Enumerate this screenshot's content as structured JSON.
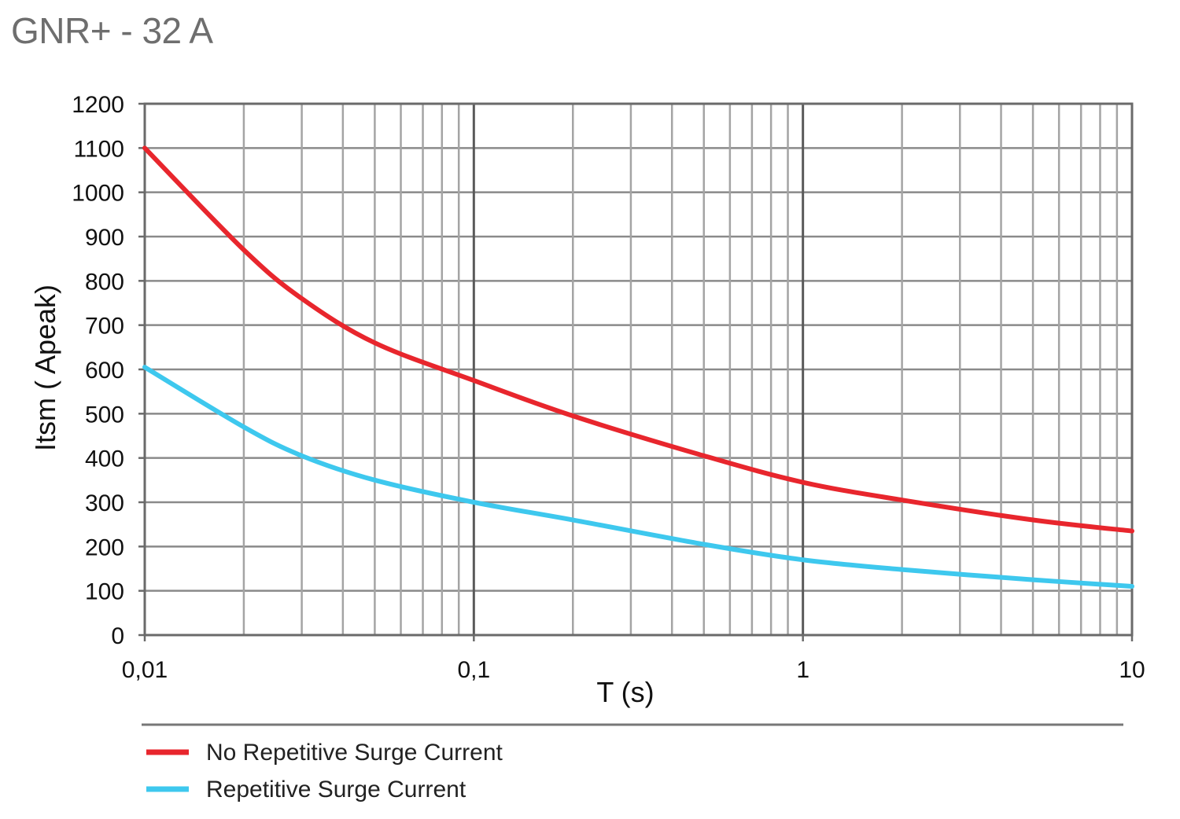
{
  "chart_data": {
    "type": "line",
    "title": "GNR+ - 32 A",
    "xlabel": "T (s)",
    "ylabel": "Itsm ( Apeak)",
    "xscale": "log",
    "xlim": [
      0.01,
      10
    ],
    "ylim": [
      0,
      1200
    ],
    "grid": true,
    "legend_position": "bottom-left",
    "x_tick_labels": [
      {
        "value": 0.01,
        "label": "0,01"
      },
      {
        "value": 0.1,
        "label": "0,1"
      },
      {
        "value": 1,
        "label": "1"
      },
      {
        "value": 10,
        "label": "10"
      }
    ],
    "y_tick_labels": [
      "0",
      "100",
      "200",
      "300",
      "400",
      "500",
      "600",
      "700",
      "800",
      "900",
      "1000",
      "1100",
      "1200"
    ],
    "series": [
      {
        "name": "No Repetitive Surge Current",
        "color": "#e8262d",
        "x": [
          0.01,
          0.02,
          0.03,
          0.05,
          0.1,
          0.2,
          0.5,
          1,
          2,
          5,
          10
        ],
        "y": [
          1100,
          870,
          760,
          660,
          575,
          495,
          405,
          345,
          305,
          260,
          235
        ]
      },
      {
        "name": "Repetitive Surge Current",
        "color": "#3ec8ee",
        "x": [
          0.01,
          0.02,
          0.03,
          0.05,
          0.1,
          0.2,
          0.5,
          1,
          2,
          5,
          10
        ],
        "y": [
          605,
          470,
          405,
          350,
          300,
          260,
          205,
          170,
          148,
          125,
          110
        ]
      }
    ]
  }
}
